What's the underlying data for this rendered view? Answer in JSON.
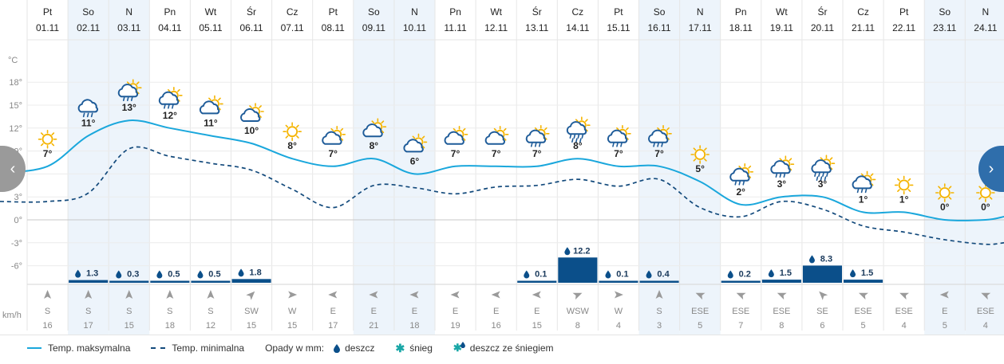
{
  "nav": {
    "prev_icon": "chevron-left-icon",
    "next_icon": "chevron-right-icon"
  },
  "axis": {
    "unit_temp": "°C",
    "unit_wind": "km/h",
    "ticks": [
      18,
      15,
      12,
      9,
      6,
      3,
      0,
      -3,
      -6
    ]
  },
  "colors": {
    "max_line": "#1aa7dc",
    "min_line": "#134a7c",
    "bars": "#0b4f8a",
    "weekend_shade": "#edf4fb",
    "sun": "#f5b400",
    "cloud": "#1f5c99"
  },
  "chart_data": {
    "type": "line",
    "title": "",
    "days": [
      {
        "name": "Pt",
        "date": "01.11",
        "weekend": false,
        "icon": "sun",
        "tmax": 7,
        "tmin": 2.4,
        "precip": null,
        "wind_dir": "S",
        "wind_speed": "16"
      },
      {
        "name": "So",
        "date": "02.11",
        "weekend": true,
        "icon": "cloud-rain",
        "tmax": 11,
        "tmin": 3.5,
        "precip": "1.3",
        "wind_dir": "S",
        "wind_speed": "17"
      },
      {
        "name": "N",
        "date": "03.11",
        "weekend": true,
        "icon": "sun-cloud-rain",
        "tmax": 13,
        "tmin": 9.3,
        "precip": "0.3",
        "wind_dir": "S",
        "wind_speed": "15"
      },
      {
        "name": "Pn",
        "date": "04.11",
        "weekend": false,
        "icon": "sun-cloud-rain",
        "tmax": 12,
        "tmin": 8.3,
        "precip": "0.5",
        "wind_dir": "S",
        "wind_speed": "18"
      },
      {
        "name": "Wt",
        "date": "05.11",
        "weekend": false,
        "icon": "sun-cloud",
        "tmax": 11,
        "tmin": 7.4,
        "precip": "0.5",
        "wind_dir": "S",
        "wind_speed": "12"
      },
      {
        "name": "Śr",
        "date": "06.11",
        "weekend": false,
        "icon": "sun-cloud",
        "tmax": 10,
        "tmin": 6.5,
        "precip": "1.8",
        "wind_dir": "SW",
        "wind_speed": "15"
      },
      {
        "name": "Cz",
        "date": "07.11",
        "weekend": false,
        "icon": "sun",
        "tmax": 8,
        "tmin": 4.0,
        "precip": null,
        "wind_dir": "W",
        "wind_speed": "15"
      },
      {
        "name": "Pt",
        "date": "08.11",
        "weekend": false,
        "icon": "sun-cloud",
        "tmax": 7,
        "tmin": 1.6,
        "precip": null,
        "wind_dir": "E",
        "wind_speed": "17"
      },
      {
        "name": "So",
        "date": "09.11",
        "weekend": true,
        "icon": "sun-cloud",
        "tmax": 8,
        "tmin": 4.5,
        "precip": null,
        "wind_dir": "E",
        "wind_speed": "21"
      },
      {
        "name": "N",
        "date": "10.11",
        "weekend": true,
        "icon": "sun-cloud",
        "tmax": 6,
        "tmin": 4.2,
        "precip": null,
        "wind_dir": "E",
        "wind_speed": "18"
      },
      {
        "name": "Pn",
        "date": "11.11",
        "weekend": false,
        "icon": "sun-cloud",
        "tmax": 7,
        "tmin": 3.4,
        "precip": null,
        "wind_dir": "E",
        "wind_speed": "19"
      },
      {
        "name": "Wt",
        "date": "12.11",
        "weekend": false,
        "icon": "sun-cloud",
        "tmax": 7,
        "tmin": 4.3,
        "precip": null,
        "wind_dir": "E",
        "wind_speed": "16"
      },
      {
        "name": "Śr",
        "date": "13.11",
        "weekend": false,
        "icon": "sun-cloud-rain",
        "tmax": 7,
        "tmin": 4.5,
        "precip": "0.1",
        "wind_dir": "E",
        "wind_speed": "15"
      },
      {
        "name": "Cz",
        "date": "14.11",
        "weekend": false,
        "icon": "sun-cloud-heavy-rain",
        "tmax": 8,
        "tmin": 5.3,
        "precip": "12.2",
        "wind_dir": "WSW",
        "wind_speed": "8"
      },
      {
        "name": "Pt",
        "date": "15.11",
        "weekend": false,
        "icon": "sun-cloud-rain",
        "tmax": 7,
        "tmin": 4.4,
        "precip": "0.1",
        "wind_dir": "W",
        "wind_speed": "4"
      },
      {
        "name": "So",
        "date": "16.11",
        "weekend": true,
        "icon": "sun-cloud-rain",
        "tmax": 7,
        "tmin": 5.3,
        "precip": "0.4",
        "wind_dir": "S",
        "wind_speed": "3"
      },
      {
        "name": "N",
        "date": "17.11",
        "weekend": true,
        "icon": "sun",
        "tmax": 5,
        "tmin": 1.6,
        "precip": null,
        "wind_dir": "ESE",
        "wind_speed": "5"
      },
      {
        "name": "Pn",
        "date": "18.11",
        "weekend": false,
        "icon": "sun-cloud-rain",
        "tmax": 2,
        "tmin": 0.4,
        "precip": "0.2",
        "wind_dir": "ESE",
        "wind_speed": "7"
      },
      {
        "name": "Wt",
        "date": "19.11",
        "weekend": false,
        "icon": "sun-cloud-rain",
        "tmax": 3,
        "tmin": 2.4,
        "precip": "1.5",
        "wind_dir": "ESE",
        "wind_speed": "8"
      },
      {
        "name": "Śr",
        "date": "20.11",
        "weekend": false,
        "icon": "sun-cloud-heavy-rain",
        "tmax": 3,
        "tmin": 1.4,
        "precip": "8.3",
        "wind_dir": "SE",
        "wind_speed": "6"
      },
      {
        "name": "Cz",
        "date": "21.11",
        "weekend": false,
        "icon": "sun-cloud-rain",
        "tmax": 1,
        "tmin": -0.8,
        "precip": "1.5",
        "wind_dir": "ESE",
        "wind_speed": "5"
      },
      {
        "name": "Pt",
        "date": "22.11",
        "weekend": false,
        "icon": "sun",
        "tmax": 1,
        "tmin": -1.6,
        "precip": null,
        "wind_dir": "ESE",
        "wind_speed": "4"
      },
      {
        "name": "So",
        "date": "23.11",
        "weekend": true,
        "icon": "sun",
        "tmax": 0,
        "tmin": -2.6,
        "precip": null,
        "wind_dir": "E",
        "wind_speed": "5"
      },
      {
        "name": "N",
        "date": "24.11",
        "weekend": true,
        "icon": "sun",
        "tmax": 0,
        "tmin": -3.2,
        "precip": null,
        "wind_dir": "ESE",
        "wind_speed": "4"
      }
    ],
    "ylim": [
      -7.5,
      20
    ]
  },
  "legend": {
    "max_label": "Temp. maksymalna",
    "min_label": "Temp. minimalna",
    "precip_title": "Opady w mm:",
    "rain_label": "deszcz",
    "snow_label": "śnieg",
    "mixed_label": "deszcz ze śniegiem"
  }
}
